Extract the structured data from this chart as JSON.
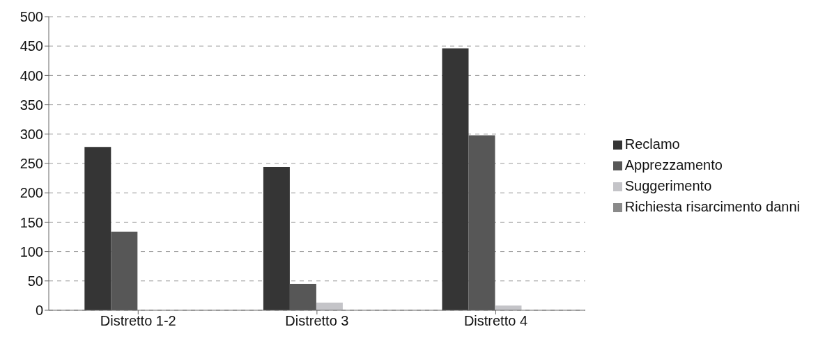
{
  "chart_data": {
    "type": "bar",
    "categories": [
      "Distretto 1-2",
      "Distretto 3",
      "Distretto 4"
    ],
    "series": [
      {
        "name": "Reclamo",
        "color": "#353535",
        "values": [
          278,
          244,
          446
        ]
      },
      {
        "name": "Apprezzamento",
        "color": "#575757",
        "values": [
          134,
          45,
          298
        ]
      },
      {
        "name": "Suggerimento",
        "color": "#c4c4c8",
        "values": [
          null,
          13,
          8
        ]
      },
      {
        "name": "Richiesta risarcimento danni",
        "color": "#8a8a8a",
        "values": [
          null,
          0,
          null
        ]
      }
    ],
    "ylim": [
      0,
      500
    ],
    "yticks": [
      0,
      50,
      100,
      150,
      200,
      250,
      300,
      350,
      400,
      450,
      500
    ],
    "grid": "y",
    "legend": "right"
  }
}
